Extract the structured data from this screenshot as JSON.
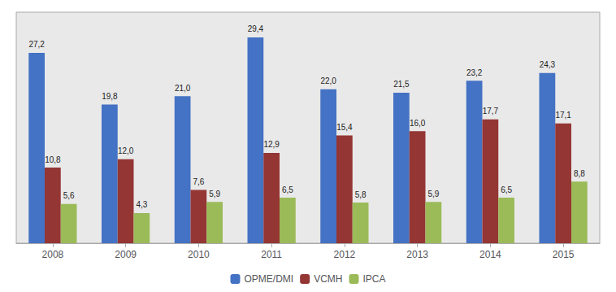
{
  "chart_data": {
    "type": "bar",
    "categories": [
      "2008",
      "2009",
      "2010",
      "2011",
      "2012",
      "2013",
      "2014",
      "2015"
    ],
    "series": [
      {
        "name": "OPME/DMI",
        "color": "#4472C4",
        "values": [
          27.2,
          19.8,
          21.0,
          29.4,
          22.0,
          21.5,
          23.2,
          24.3
        ],
        "value_labels": [
          "27,2",
          "19,8",
          "21,0",
          "29,4",
          "22,0",
          "21,5",
          "23,2",
          "24,3"
        ]
      },
      {
        "name": "VCMH",
        "color": "#943634",
        "values": [
          10.8,
          12.0,
          7.6,
          12.9,
          15.4,
          16.0,
          17.7,
          17.1
        ],
        "value_labels": [
          "10,8",
          "12,0",
          "7,6",
          "12,9",
          "15,4",
          "16,0",
          "17,7",
          "17,1"
        ]
      },
      {
        "name": "IPCA",
        "color": "#9BBB59",
        "values": [
          5.6,
          4.3,
          5.9,
          6.5,
          5.8,
          5.9,
          6.5,
          8.8
        ],
        "value_labels": [
          "5,6",
          "4,3",
          "5,9",
          "6,5",
          "5,8",
          "5,9",
          "6,5",
          "8,8"
        ]
      }
    ],
    "ylim": [
      0,
      33
    ],
    "grid": false,
    "legend": "bottom",
    "data_labels": true,
    "tick_labels": "x"
  }
}
